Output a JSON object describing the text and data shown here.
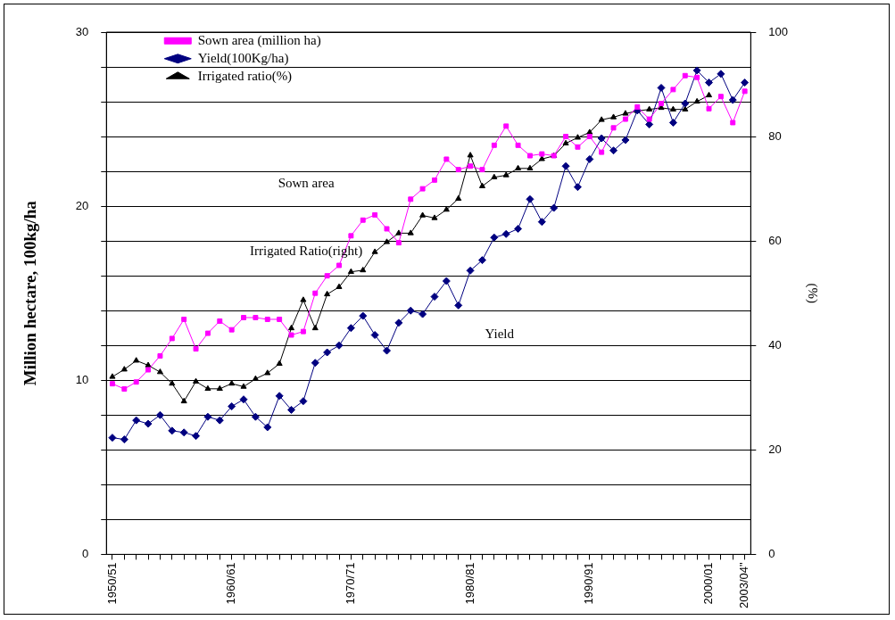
{
  "chart_data": {
    "type": "line",
    "ylabel": "Million hectare, 100kg/ha",
    "y2label": "(%)",
    "categories": [
      "1950/51",
      null,
      null,
      null,
      null,
      null,
      null,
      null,
      null,
      null,
      "1960/61",
      null,
      null,
      null,
      null,
      null,
      null,
      null,
      null,
      null,
      "1970/71",
      null,
      null,
      null,
      null,
      null,
      null,
      null,
      null,
      null,
      "1980/81",
      null,
      null,
      null,
      null,
      null,
      null,
      null,
      null,
      null,
      "1990/91",
      null,
      null,
      null,
      null,
      null,
      null,
      null,
      null,
      null,
      "2000/01",
      null,
      null,
      "2003/04\""
    ],
    "series": [
      {
        "name": "Sown area (million ha)",
        "color": "#ff00ff",
        "marker": "square",
        "values": [
          9.8,
          9.5,
          9.9,
          10.6,
          11.4,
          12.4,
          13.5,
          11.8,
          12.7,
          13.4,
          12.9,
          13.6,
          13.6,
          13.5,
          13.5,
          12.6,
          12.8,
          15.0,
          16.0,
          16.6,
          18.3,
          19.2,
          19.5,
          18.7,
          17.9,
          20.4,
          21.0,
          21.5,
          22.7,
          22.1,
          22.3,
          22.1,
          23.5,
          24.6,
          23.5,
          22.9,
          23.0,
          22.9,
          24.0,
          23.4,
          24.0,
          23.1,
          24.5,
          25.0,
          25.7,
          25.0,
          25.9,
          26.7,
          27.5,
          27.4,
          25.6,
          26.3,
          24.8,
          26.6
        ]
      },
      {
        "name": "Yield(100Kg/ha)",
        "color": "#000080",
        "marker": "diamond",
        "values": [
          6.7,
          6.6,
          7.7,
          7.5,
          8.0,
          7.1,
          7.0,
          6.8,
          7.9,
          7.7,
          8.5,
          8.9,
          7.9,
          7.3,
          9.1,
          8.3,
          8.8,
          11.0,
          11.6,
          12.0,
          13.0,
          13.7,
          12.6,
          11.7,
          13.3,
          14.0,
          13.8,
          14.8,
          15.7,
          14.3,
          16.3,
          16.9,
          18.2,
          18.4,
          18.7,
          20.4,
          19.1,
          19.9,
          22.3,
          21.1,
          22.7,
          23.9,
          23.2,
          23.8,
          25.5,
          24.7,
          26.8,
          24.8,
          25.9,
          27.8,
          27.1,
          27.6,
          26.1,
          27.1
        ]
      },
      {
        "name": "Irrigated ratio(%)",
        "color": "#000000",
        "marker": "triangle",
        "axis": "y2",
        "values": [
          34.0,
          35.4,
          37.1,
          36.2,
          34.9,
          32.7,
          29.3,
          33.1,
          31.7,
          31.7,
          32.7,
          32.1,
          33.6,
          34.7,
          36.5,
          43.3,
          48.7,
          43.3,
          49.8,
          51.2,
          54.1,
          54.4,
          57.9,
          59.8,
          61.5,
          61.5,
          64.9,
          64.4,
          66.0,
          68.1,
          76.4,
          70.5,
          72.2,
          72.6,
          73.9,
          73.9,
          75.7,
          76.3,
          78.7,
          79.8,
          80.8,
          83.2,
          83.7,
          84.4,
          84.9,
          85.2,
          85.5,
          85.2,
          85.2,
          86.7,
          87.9,
          null,
          null,
          null
        ]
      }
    ],
    "ylim": [
      0,
      30
    ],
    "yticks": [
      0,
      {
        "value": 2,
        "label": null
      },
      {
        "value": 4,
        "label": null
      },
      {
        "value": 6,
        "label": null
      },
      {
        "value": 8,
        "label": null
      },
      10,
      {
        "value": 12,
        "label": null
      },
      {
        "value": 14,
        "label": null
      },
      {
        "value": 16,
        "label": null
      },
      {
        "value": 18,
        "label": null
      },
      20,
      {
        "value": 22,
        "label": null
      },
      {
        "value": 24,
        "label": null
      },
      {
        "value": 26,
        "label": null
      },
      {
        "value": 28,
        "label": null
      },
      30
    ],
    "y2lim": [
      0,
      100
    ],
    "y2ticks": [
      0,
      20,
      40,
      60,
      80,
      100
    ],
    "grid": "y",
    "legend": "top left",
    "line_style": "solid",
    "annotations": [
      "Sown area",
      "Irrigated Ratio(right)",
      "Yield"
    ]
  }
}
